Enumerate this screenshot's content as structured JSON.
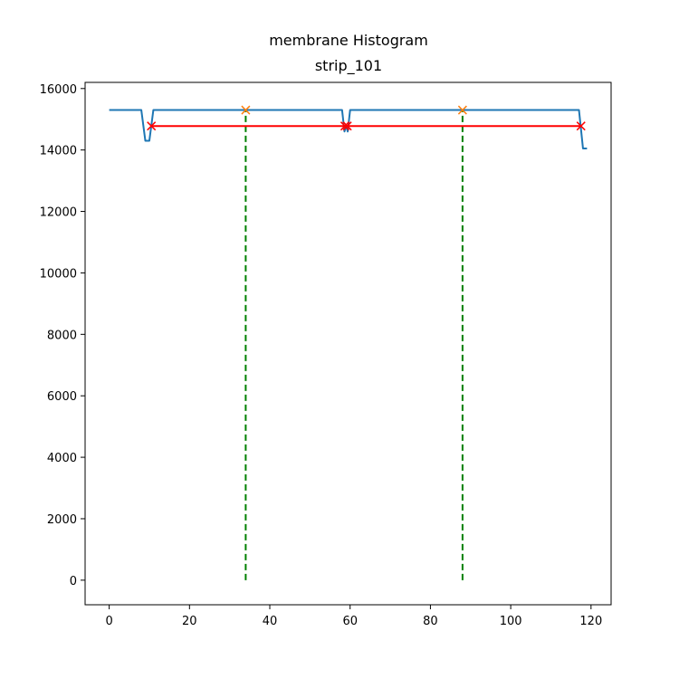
{
  "chart_data": {
    "type": "line",
    "title": "membrane Histogram",
    "subtitle": "strip_101",
    "xlabel": "",
    "ylabel": "",
    "xlim": [
      -6,
      125
    ],
    "ylim": [
      -800,
      16200
    ],
    "xticks": [
      0,
      20,
      40,
      60,
      80,
      100,
      120
    ],
    "yticks": [
      0,
      2000,
      4000,
      6000,
      8000,
      10000,
      12000,
      14000,
      16000
    ],
    "grid": false,
    "series": [
      {
        "role": "profile",
        "color": "#1f77b4",
        "x": [
          0,
          8,
          9,
          10,
          11,
          58,
          58.6,
          59,
          59.4,
          60,
          117,
          118,
          119
        ],
        "y": [
          15300,
          15300,
          14300,
          14300,
          15300,
          15300,
          14600,
          14800,
          14600,
          15300,
          15300,
          14050,
          14050
        ]
      },
      {
        "role": "peak-markers",
        "color": "#ff7f0e",
        "marker": "x",
        "x": [
          34,
          88
        ],
        "y": [
          15300,
          15300
        ]
      },
      {
        "role": "width-lines",
        "color": "#ff0000",
        "marker": "x",
        "segments": [
          {
            "x": [
              10.5,
              58.7
            ],
            "y": [
              14780,
              14780
            ]
          },
          {
            "x": [
              59.3,
              117.5
            ],
            "y": [
              14780,
              14780
            ]
          }
        ]
      },
      {
        "role": "vertical-guides",
        "color": "#008000",
        "style": "dashed",
        "x": [
          34,
          88
        ],
        "y_from": 0,
        "y_to": 15300
      }
    ]
  }
}
